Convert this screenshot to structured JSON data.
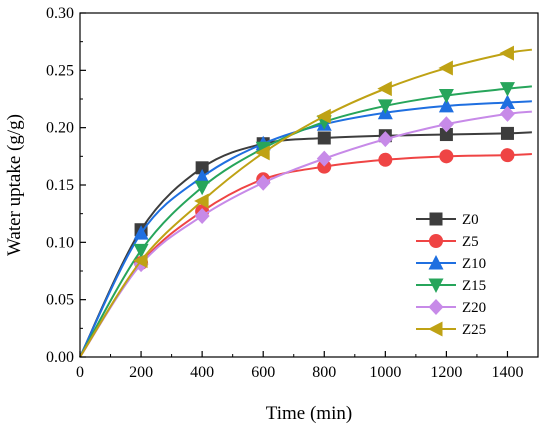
{
  "chart_data": {
    "type": "line",
    "title": "",
    "xlabel": "Time (min)",
    "ylabel": "Water uptake (g/g)",
    "xlim": [
      0,
      1500
    ],
    "ylim": [
      0.0,
      0.3
    ],
    "xticks": [
      0,
      200,
      400,
      600,
      800,
      1000,
      1200,
      1400
    ],
    "yticks": [
      0.0,
      0.05,
      0.1,
      0.15,
      0.2,
      0.25,
      0.3
    ],
    "xtick_labels": [
      "0",
      "200",
      "400",
      "600",
      "800",
      "1000",
      "1200",
      "1400"
    ],
    "ytick_labels": [
      "0.00",
      "0.05",
      "0.10",
      "0.15",
      "0.20",
      "0.25",
      "0.30"
    ],
    "grid": false,
    "legend_position": "right",
    "x": [
      0,
      200,
      400,
      600,
      800,
      1000,
      1200,
      1400
    ],
    "series": [
      {
        "name": "Z0",
        "color": "#3d3d3d",
        "marker": "square",
        "values": [
          0.0,
          0.111,
          0.165,
          0.186,
          0.191,
          0.193,
          0.194,
          0.195
        ],
        "curve_end": 0.196
      },
      {
        "name": "Z5",
        "color": "#ef4444",
        "marker": "circle",
        "values": [
          0.0,
          0.082,
          0.127,
          0.155,
          0.166,
          0.172,
          0.175,
          0.176
        ],
        "curve_end": 0.177
      },
      {
        "name": "Z10",
        "color": "#1f6fe0",
        "marker": "triangle-up",
        "values": [
          0.0,
          0.108,
          0.157,
          0.186,
          0.203,
          0.213,
          0.219,
          0.222
        ],
        "curve_end": 0.223
      },
      {
        "name": "Z15",
        "color": "#27a55b",
        "marker": "triangle-down",
        "values": [
          0.0,
          0.093,
          0.148,
          0.182,
          0.205,
          0.219,
          0.228,
          0.234
        ],
        "curve_end": 0.236
      },
      {
        "name": "Z20",
        "color": "#c78ae8",
        "marker": "diamond",
        "values": [
          0.0,
          0.081,
          0.123,
          0.152,
          0.173,
          0.19,
          0.203,
          0.212
        ],
        "curve_end": 0.214
      },
      {
        "name": "Z25",
        "color": "#bfa214",
        "marker": "triangle-left",
        "values": [
          0.0,
          0.084,
          0.136,
          0.178,
          0.21,
          0.234,
          0.252,
          0.265
        ],
        "curve_end": 0.268
      }
    ]
  }
}
